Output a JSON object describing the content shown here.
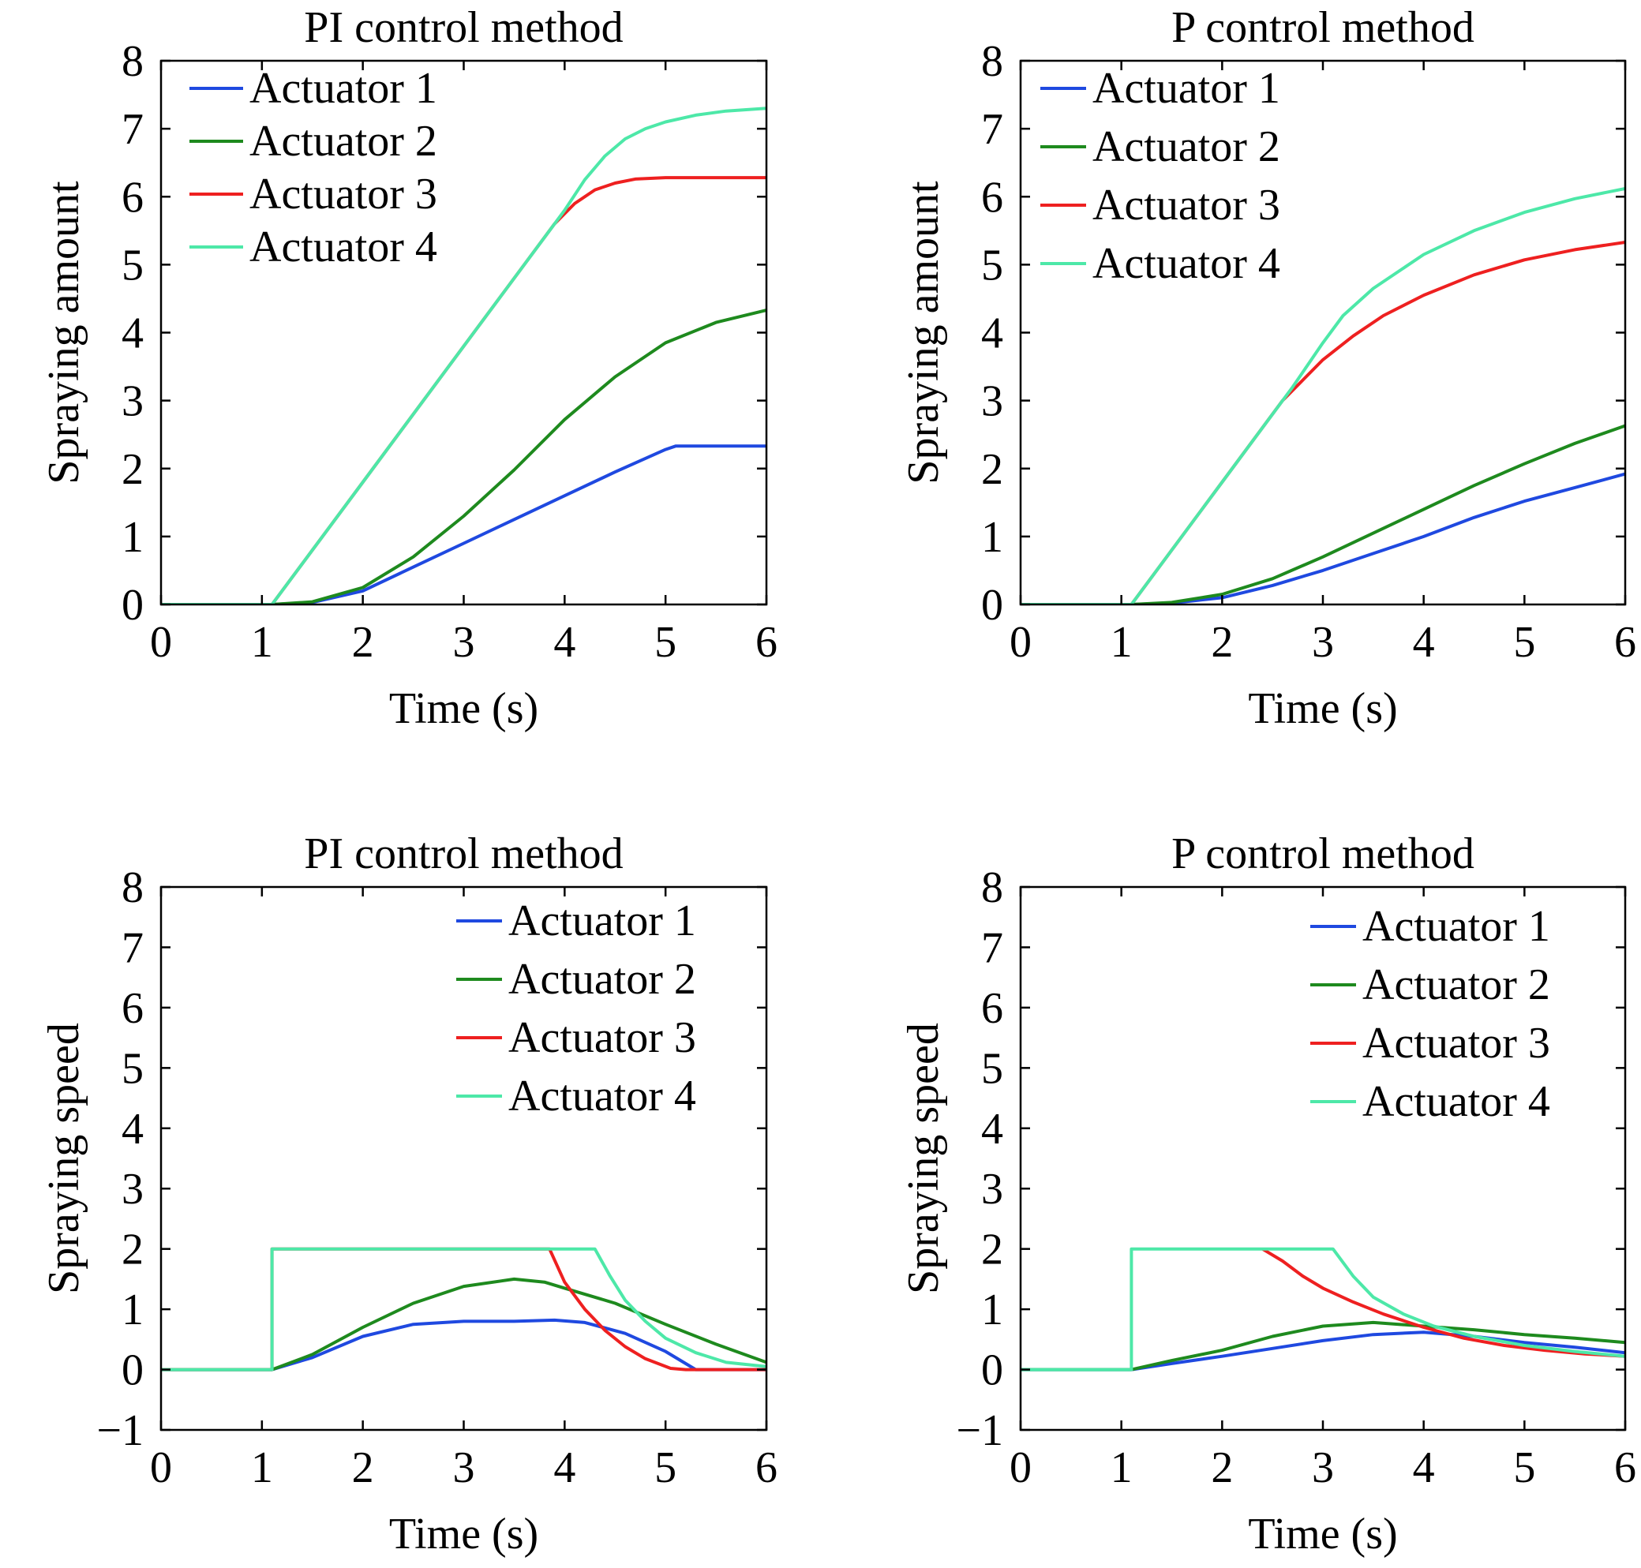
{
  "chart_data": [
    {
      "type": "line",
      "title": "PI control method",
      "xlabel": "Time (s)",
      "ylabel": "Spraying amount",
      "xlim": [
        0,
        6
      ],
      "ylim": [
        0,
        8
      ],
      "xticks": [
        0,
        1,
        2,
        3,
        4,
        5,
        6
      ],
      "yticks": [
        0,
        1,
        2,
        3,
        4,
        5,
        6,
        7,
        8
      ],
      "grid": false,
      "legend": "top-left",
      "series": [
        {
          "name": "Actuator 1",
          "color": "#1f49e0",
          "x": [
            0,
            1.1,
            1.5,
            2.0,
            2.5,
            3.0,
            3.5,
            4.0,
            4.5,
            5.0,
            5.1,
            5.5,
            6.0
          ],
          "y": [
            0,
            0,
            0.03,
            0.2,
            0.55,
            0.9,
            1.25,
            1.6,
            1.95,
            2.28,
            2.33,
            2.33,
            2.33
          ]
        },
        {
          "name": "Actuator 2",
          "color": "#1e8a1e",
          "x": [
            0,
            1.1,
            1.5,
            2.0,
            2.5,
            3.0,
            3.5,
            4.0,
            4.5,
            5.0,
            5.5,
            6.0
          ],
          "y": [
            0,
            0,
            0.04,
            0.25,
            0.7,
            1.3,
            1.98,
            2.72,
            3.35,
            3.85,
            4.15,
            4.33
          ]
        },
        {
          "name": "Actuator 3",
          "color": "#ee2020",
          "x": [
            0,
            1.1,
            2.0,
            3.0,
            3.9,
            4.1,
            4.3,
            4.5,
            4.7,
            5.0,
            6.0
          ],
          "y": [
            0,
            0,
            1.8,
            3.8,
            5.6,
            5.9,
            6.1,
            6.2,
            6.26,
            6.28,
            6.28
          ]
        },
        {
          "name": "Actuator 4",
          "color": "#4de8a8",
          "x": [
            0,
            1.1,
            2.0,
            3.0,
            4.0,
            4.2,
            4.4,
            4.6,
            4.8,
            5.0,
            5.3,
            5.6,
            6.0
          ],
          "y": [
            0,
            0,
            1.8,
            3.8,
            5.8,
            6.25,
            6.6,
            6.85,
            7.0,
            7.1,
            7.2,
            7.26,
            7.3
          ]
        }
      ]
    },
    {
      "type": "line",
      "title": "P control method",
      "xlabel": "Time (s)",
      "ylabel": "Spraying amount",
      "xlim": [
        0,
        6
      ],
      "ylim": [
        0,
        8
      ],
      "xticks": [
        0,
        1,
        2,
        3,
        4,
        5,
        6
      ],
      "yticks": [
        0,
        1,
        2,
        3,
        4,
        5,
        6,
        7,
        8
      ],
      "grid": false,
      "legend": "top-left",
      "series": [
        {
          "name": "Actuator 1",
          "color": "#1f49e0",
          "x": [
            0,
            1.1,
            1.5,
            2.0,
            2.5,
            3.0,
            3.5,
            4.0,
            4.5,
            5.0,
            5.5,
            6.0
          ],
          "y": [
            0,
            0,
            0.02,
            0.1,
            0.28,
            0.5,
            0.75,
            1.0,
            1.28,
            1.52,
            1.72,
            1.92
          ]
        },
        {
          "name": "Actuator 2",
          "color": "#1e8a1e",
          "x": [
            0,
            1.1,
            1.5,
            2.0,
            2.5,
            3.0,
            3.5,
            4.0,
            4.5,
            5.0,
            5.5,
            6.0
          ],
          "y": [
            0,
            0,
            0.03,
            0.15,
            0.38,
            0.7,
            1.05,
            1.4,
            1.75,
            2.07,
            2.37,
            2.63
          ]
        },
        {
          "name": "Actuator 3",
          "color": "#ee2020",
          "x": [
            0,
            1.1,
            2.0,
            2.6,
            3.0,
            3.3,
            3.6,
            4.0,
            4.5,
            5.0,
            5.5,
            6.0
          ],
          "y": [
            0,
            0,
            1.8,
            3.0,
            3.6,
            3.95,
            4.25,
            4.55,
            4.85,
            5.07,
            5.22,
            5.33
          ]
        },
        {
          "name": "Actuator 4",
          "color": "#4de8a8",
          "x": [
            0,
            1.1,
            2.0,
            2.7,
            3.0,
            3.2,
            3.5,
            4.0,
            4.5,
            5.0,
            5.5,
            6.0
          ],
          "y": [
            0,
            0,
            1.8,
            3.2,
            3.85,
            4.25,
            4.65,
            5.15,
            5.5,
            5.77,
            5.97,
            6.12
          ]
        }
      ]
    },
    {
      "type": "line",
      "title": "PI control method",
      "xlabel": "Time (s)",
      "ylabel": "Spraying speed",
      "xlim": [
        0,
        6
      ],
      "ylim": [
        -1,
        8
      ],
      "xticks": [
        0,
        1,
        2,
        3,
        4,
        5,
        6
      ],
      "yticks": [
        -1,
        0,
        1,
        2,
        3,
        4,
        5,
        6,
        7,
        8
      ],
      "grid": false,
      "legend": "top-right",
      "series": [
        {
          "name": "Actuator 1",
          "color": "#1f49e0",
          "x": [
            0,
            1.1,
            1.5,
            2.0,
            2.5,
            3.0,
            3.5,
            3.9,
            4.2,
            4.6,
            5.0,
            5.3,
            6.0
          ],
          "y": [
            0,
            0,
            0.2,
            0.55,
            0.75,
            0.8,
            0.8,
            0.82,
            0.78,
            0.6,
            0.3,
            0,
            0
          ]
        },
        {
          "name": "Actuator 2",
          "color": "#1e8a1e",
          "x": [
            0,
            1.1,
            1.5,
            2.0,
            2.5,
            3.0,
            3.5,
            3.8,
            4.0,
            4.5,
            5.0,
            5.5,
            6.0
          ],
          "y": [
            0,
            0,
            0.25,
            0.7,
            1.1,
            1.38,
            1.5,
            1.45,
            1.35,
            1.1,
            0.75,
            0.42,
            0.12
          ]
        },
        {
          "name": "Actuator 3",
          "color": "#ee2020",
          "x": [
            0,
            1.1,
            1.1,
            3.85,
            4.0,
            4.2,
            4.4,
            4.6,
            4.8,
            5.05,
            5.2,
            6.0
          ],
          "y": [
            0,
            0,
            2,
            2,
            1.45,
            1.0,
            0.65,
            0.38,
            0.18,
            0.02,
            0,
            0
          ]
        },
        {
          "name": "Actuator 4",
          "color": "#4de8a8",
          "x": [
            0,
            1.1,
            1.1,
            4.3,
            4.45,
            4.6,
            4.8,
            5.0,
            5.3,
            5.6,
            6.0
          ],
          "y": [
            0,
            0,
            2,
            2,
            1.55,
            1.15,
            0.8,
            0.52,
            0.28,
            0.12,
            0.05
          ]
        }
      ]
    },
    {
      "type": "line",
      "title": "P control method",
      "xlabel": "Time (s)",
      "ylabel": "Spraying speed",
      "xlim": [
        0,
        6
      ],
      "ylim": [
        -1,
        8
      ],
      "xticks": [
        0,
        1,
        2,
        3,
        4,
        5,
        6
      ],
      "yticks": [
        -1,
        0,
        1,
        2,
        3,
        4,
        5,
        6,
        7,
        8
      ],
      "grid": false,
      "legend": "top-right",
      "series": [
        {
          "name": "Actuator 1",
          "color": "#1f49e0",
          "x": [
            0,
            1.1,
            1.5,
            2.0,
            2.5,
            3.0,
            3.5,
            4.0,
            4.5,
            5.0,
            5.5,
            6.0
          ],
          "y": [
            0,
            0,
            0.1,
            0.22,
            0.35,
            0.48,
            0.58,
            0.62,
            0.55,
            0.45,
            0.37,
            0.28
          ]
        },
        {
          "name": "Actuator 2",
          "color": "#1e8a1e",
          "x": [
            0,
            1.1,
            1.5,
            2.0,
            2.5,
            3.0,
            3.5,
            4.0,
            4.5,
            5.0,
            5.5,
            6.0
          ],
          "y": [
            0,
            0,
            0.15,
            0.32,
            0.55,
            0.72,
            0.78,
            0.72,
            0.66,
            0.58,
            0.52,
            0.45
          ]
        },
        {
          "name": "Actuator 3",
          "color": "#ee2020",
          "x": [
            2.4,
            2.6,
            2.8,
            3.0,
            3.3,
            3.6,
            4.0,
            4.4,
            4.8,
            5.2,
            5.6,
            6.0
          ],
          "y": [
            2,
            1.8,
            1.55,
            1.35,
            1.12,
            0.92,
            0.7,
            0.52,
            0.4,
            0.32,
            0.26,
            0.22
          ]
        },
        {
          "name": "Actuator 4",
          "color": "#4de8a8",
          "x": [
            0,
            1.1,
            1.1,
            3.1,
            3.3,
            3.5,
            3.8,
            4.1,
            4.5,
            5.0,
            5.5,
            6.0
          ],
          "y": [
            0,
            0,
            2,
            2,
            1.55,
            1.2,
            0.92,
            0.72,
            0.55,
            0.4,
            0.3,
            0.22
          ]
        }
      ]
    }
  ]
}
